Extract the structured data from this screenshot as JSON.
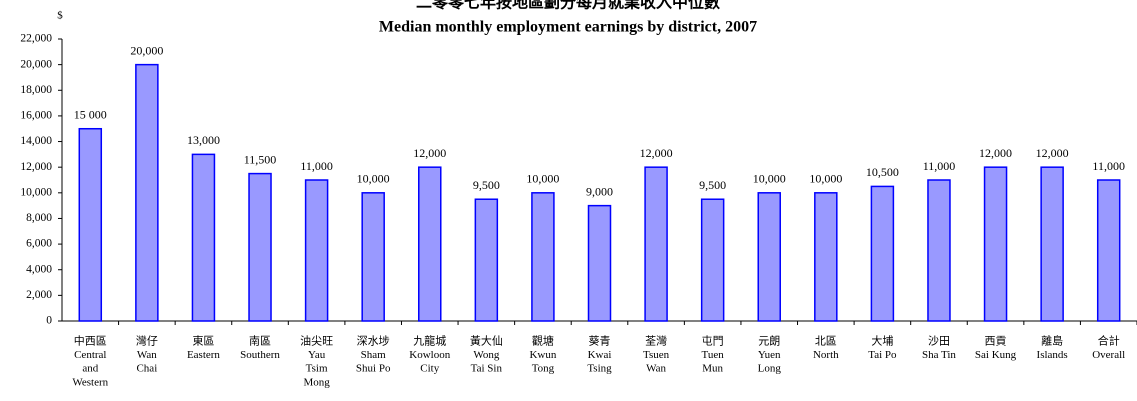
{
  "chart_data": {
    "type": "bar",
    "title": "二零零七年按地區劃分每月就業收入中位數",
    "subtitle": "Median monthly employment earnings by district, 2007",
    "y_label": "$",
    "categories": [
      [
        "中西區",
        "Central",
        "and",
        "Western"
      ],
      [
        "灣仔",
        "Wan",
        "Chai"
      ],
      [
        "東區",
        "Eastern"
      ],
      [
        "南區",
        "Southern"
      ],
      [
        "油尖旺",
        "Yau",
        "Tsim",
        "Mong"
      ],
      [
        "深水埗",
        "Sham",
        "Shui Po"
      ],
      [
        "九龍城",
        "Kowloon",
        "City"
      ],
      [
        "黃大仙",
        "Wong",
        "Tai Sin"
      ],
      [
        "觀塘",
        "Kwun",
        "Tong"
      ],
      [
        "葵青",
        "Kwai",
        "Tsing"
      ],
      [
        "荃灣",
        "Tsuen",
        "Wan"
      ],
      [
        "屯門",
        "Tuen",
        "Mun"
      ],
      [
        "元朗",
        "Yuen",
        "Long"
      ],
      [
        "北區",
        "North"
      ],
      [
        "大埔",
        "Tai Po"
      ],
      [
        "沙田",
        "Sha Tin"
      ],
      [
        "西貢",
        "Sai Kung"
      ],
      [
        "離島",
        "Islands"
      ],
      [
        "合計",
        "Overall"
      ]
    ],
    "values": [
      15000,
      20000,
      13000,
      11500,
      11000,
      10000,
      12000,
      9500,
      10000,
      9000,
      12000,
      9500,
      10000,
      10000,
      10500,
      11000,
      12000,
      12000,
      11000
    ],
    "value_labels": [
      "15 000",
      "20,000",
      "13,000",
      "11,500",
      "11,000",
      "10,000",
      "12,000",
      "9,500",
      "10,000",
      "9,000",
      "12,000",
      "9,500",
      "10,000",
      "10,000",
      "10,500",
      "11,000",
      "12,000",
      "12,000",
      "11,000"
    ],
    "color": "#9999ff",
    "edge_color": "#0000ff",
    "ylim": [
      0,
      22000
    ],
    "yticks": [
      0,
      {
        "value": 2000,
        "label": "2,000"
      },
      {
        "value": 4000,
        "label": "4,000"
      },
      {
        "value": 6000,
        "label": "6,000"
      },
      {
        "value": 8000,
        "label": "8,000"
      },
      {
        "value": 10000,
        "label": "10,000"
      },
      {
        "value": 12000,
        "label": "12,000"
      },
      {
        "value": 14000,
        "label": "14,000"
      },
      {
        "value": 16000,
        "label": "16,000"
      },
      {
        "value": 18000,
        "label": "18,000"
      },
      {
        "value": 20000,
        "label": "20,000"
      },
      {
        "value": 22000,
        "label": "22,000"
      }
    ],
    "grid": false
  }
}
